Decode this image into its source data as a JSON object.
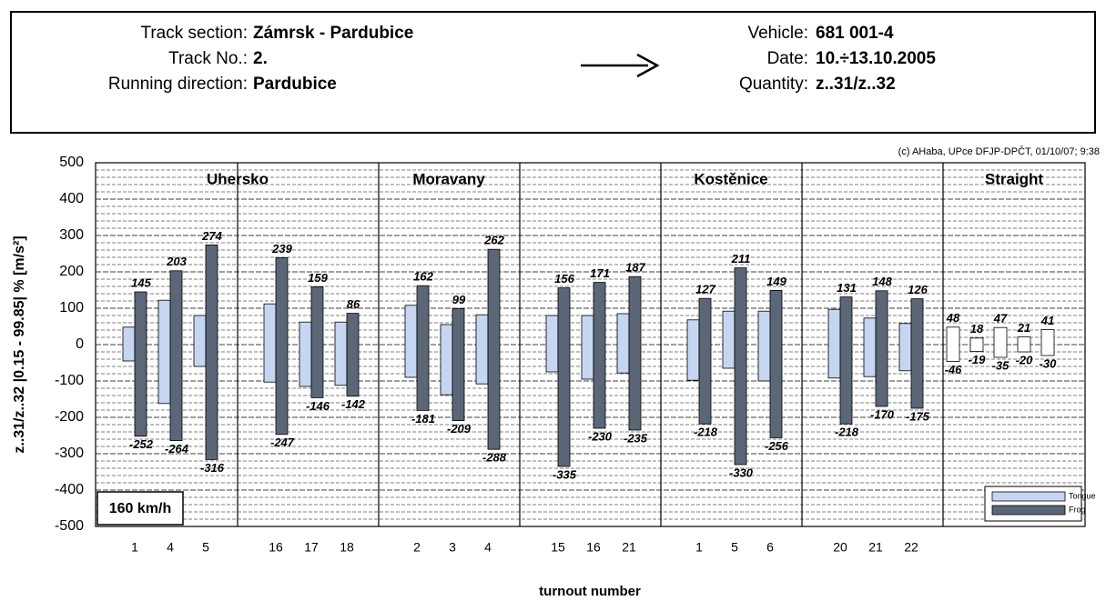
{
  "header": {
    "left": [
      {
        "label": "Track section:",
        "value": "Zámrsk - Pardubice"
      },
      {
        "label": "Track No.:",
        "value": "2."
      },
      {
        "label": "Running direction:",
        "value": "Pardubice"
      }
    ],
    "right": [
      {
        "label": "Vehicle:",
        "value": "681 001-4"
      },
      {
        "label": "Date:",
        "value": "10.÷13.10.2005"
      },
      {
        "label": "Quantity:",
        "value": "z..31/z..32"
      }
    ]
  },
  "chart_data": {
    "type": "floating-bar",
    "copyright": "(c) AHaba, UPce DFJP-DPČT, 01/10/07; 9:38",
    "speed": "160 km/h",
    "y_label": "z..31/z..32 |0.15 - 99.85| % [m/s²]",
    "x_label": "turnout number",
    "groups": [
      "Uhersko",
      "Moravany",
      "Kostěnice",
      "Straight"
    ],
    "categories": [
      "1",
      "4",
      "5",
      "16",
      "17",
      "18",
      "2",
      "3",
      "4",
      "15",
      "16",
      "21",
      "1",
      "5",
      "6",
      "20",
      "21",
      "22"
    ],
    "series": [
      {
        "name": "Tongue",
        "color": "#c6d6f2",
        "max": [
          48,
          122,
          80,
          112,
          62,
          62,
          108,
          55,
          82,
          80,
          80,
          85,
          68,
          92,
          92,
          97,
          73,
          58
        ],
        "min": [
          -45,
          -162,
          -60,
          -103,
          -115,
          -112,
          -90,
          -138,
          -108,
          -75,
          -95,
          -78,
          -98,
          -65,
          -100,
          -92,
          -88,
          -72
        ]
      },
      {
        "name": "Frog",
        "color": "#5b6677",
        "max": [
          145,
          203,
          274,
          239,
          159,
          86,
          162,
          99,
          262,
          156,
          171,
          187,
          127,
          211,
          149,
          131,
          148,
          126
        ],
        "min": [
          -252,
          -264,
          -316,
          -247,
          -146,
          -142,
          -181,
          -209,
          -288,
          -335,
          -230,
          -235,
          -218,
          -330,
          -256,
          -218,
          -170,
          -175
        ]
      }
    ],
    "straight": {
      "color": "#ffffff",
      "max": [
        48,
        18,
        47,
        21,
        41
      ],
      "min": [
        -46,
        -19,
        -35,
        -20,
        -30
      ]
    },
    "ylim": [
      -500,
      500
    ],
    "yticks": [
      -500,
      -400,
      -300,
      -200,
      -100,
      0,
      100,
      200,
      300,
      400,
      500
    ],
    "grid": true
  }
}
